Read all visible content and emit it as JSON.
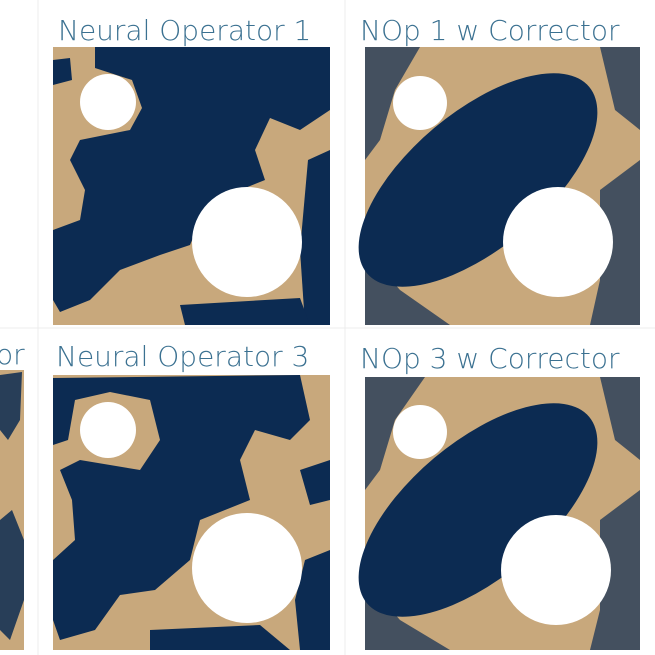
{
  "cropped_label": "or",
  "panels": [
    {
      "title": "Neural Operator 1"
    },
    {
      "title": "NOp 1 w Corrector"
    },
    {
      "title": "Neural Operator 3"
    },
    {
      "title": "NOp 3 w Corrector"
    }
  ]
}
